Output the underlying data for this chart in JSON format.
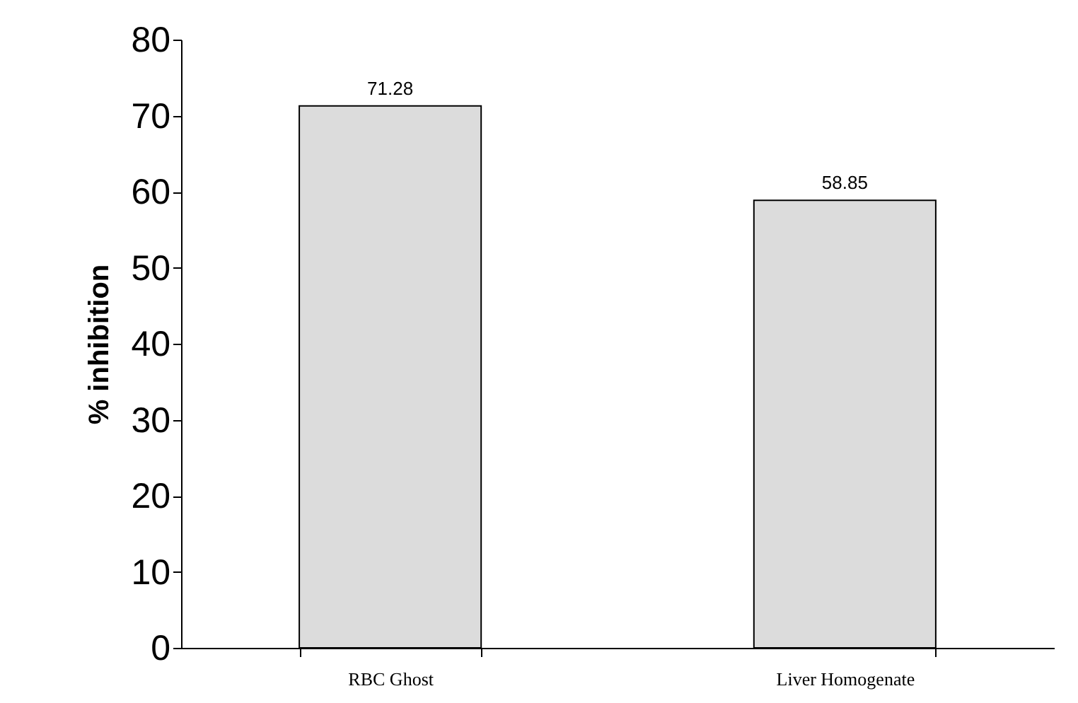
{
  "chart_data": {
    "type": "bar",
    "ylabel": "% inhibition",
    "categories": [
      "RBC Ghost",
      "Liver Homogenate"
    ],
    "values": [
      71.28,
      58.85
    ],
    "color": "#dcdcdc",
    "ylim": [
      0,
      80
    ],
    "yticks": [
      0,
      10,
      20,
      30,
      40,
      50,
      60,
      70,
      80
    ],
    "data_labels": true,
    "grid": false
  }
}
